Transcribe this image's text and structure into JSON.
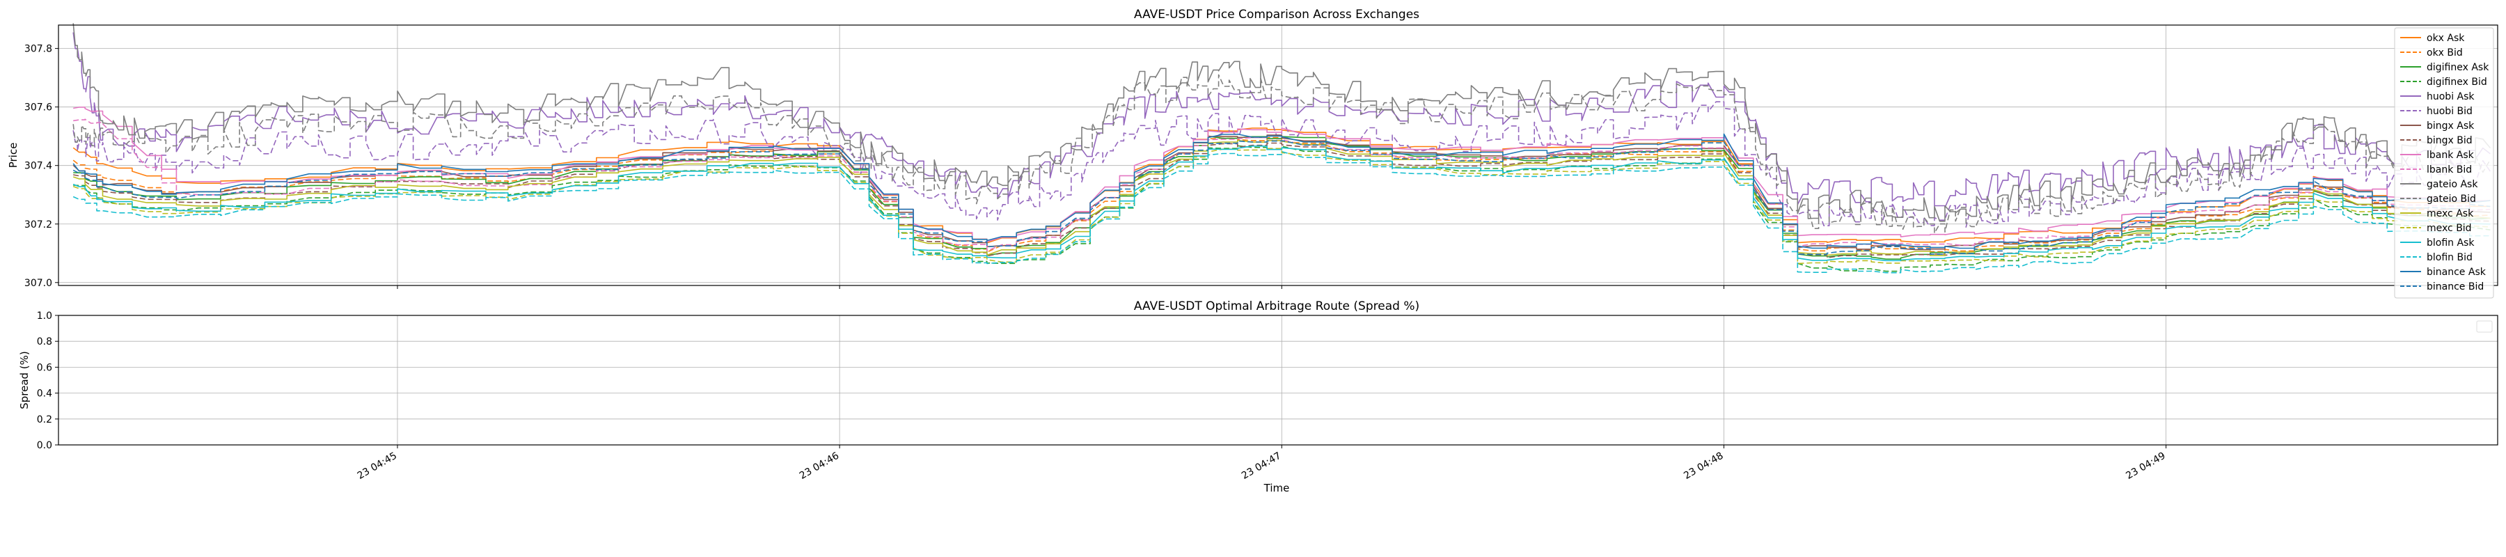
{
  "chart_data": [
    {
      "type": "line",
      "title": "AAVE-USDT Price Comparison Across Exchanges",
      "xlabel": "",
      "ylabel": "Price",
      "ylim": [
        306.99,
        307.88
      ],
      "yticks": [
        "307.0",
        "307.2",
        "307.4",
        "307.6",
        "307.8"
      ],
      "ytick_values": [
        307.0,
        307.2,
        307.4,
        307.6,
        307.8
      ],
      "xlim": [
        "04:44:14",
        "04:49:45"
      ],
      "grid": true,
      "legend_position": "upper-right",
      "x_times": [
        "04:44:16",
        "04:44:20",
        "04:44:30",
        "04:44:45",
        "04:45:00",
        "04:45:15",
        "04:45:30",
        "04:45:45",
        "04:46:00",
        "04:46:10",
        "04:46:20",
        "04:46:30",
        "04:46:40",
        "04:46:50",
        "04:47:00",
        "04:47:15",
        "04:47:30",
        "04:47:45",
        "04:48:00",
        "04:48:10",
        "04:48:20",
        "04:48:30",
        "04:48:40",
        "04:48:50",
        "04:49:00",
        "04:49:10",
        "04:49:20",
        "04:49:30",
        "04:49:44"
      ],
      "series": [
        {
          "name": "okx Ask",
          "color": "#ff7f0e",
          "dash": false,
          "values": [
            307.46,
            307.4,
            307.34,
            307.36,
            307.4,
            307.38,
            307.44,
            307.48,
            307.46,
            307.2,
            307.14,
            307.2,
            307.38,
            307.52,
            307.52,
            307.46,
            307.45,
            307.47,
            307.48,
            307.14,
            307.15,
            307.14,
            307.17,
            307.18,
            307.24,
            307.27,
            307.36,
            307.28,
            307.26
          ]
        },
        {
          "name": "okx Bid",
          "color": "#ff7f0e",
          "dash": true,
          "values": [
            307.42,
            307.36,
            307.3,
            307.33,
            307.37,
            307.35,
            307.41,
            307.45,
            307.43,
            307.17,
            307.11,
            307.17,
            307.35,
            307.49,
            307.49,
            307.43,
            307.42,
            307.44,
            307.45,
            307.11,
            307.12,
            307.11,
            307.14,
            307.15,
            307.21,
            307.24,
            307.33,
            307.25,
            307.23
          ]
        },
        {
          "name": "digifinex Ask",
          "color": "#2ca02c",
          "dash": false,
          "values": [
            307.38,
            307.32,
            307.28,
            307.32,
            307.36,
            307.34,
            307.4,
            307.44,
            307.44,
            307.16,
            307.1,
            307.14,
            307.34,
            307.5,
            307.5,
            307.44,
            307.42,
            307.44,
            307.46,
            307.1,
            307.08,
            307.1,
            307.12,
            307.14,
            307.2,
            307.22,
            307.32,
            307.24,
            307.22
          ]
        },
        {
          "name": "digifinex Bid",
          "color": "#2ca02c",
          "dash": true,
          "values": [
            307.34,
            307.28,
            307.24,
            307.28,
            307.32,
            307.3,
            307.36,
            307.4,
            307.4,
            307.12,
            307.06,
            307.1,
            307.3,
            307.46,
            307.46,
            307.4,
            307.38,
            307.4,
            307.42,
            307.06,
            307.04,
            307.06,
            307.08,
            307.1,
            307.16,
            307.18,
            307.28,
            307.2,
            307.18
          ]
        },
        {
          "name": "huobi Ask",
          "color": "#9467bd",
          "dash": false,
          "values": [
            307.82,
            307.5,
            307.48,
            307.58,
            307.54,
            307.56,
            307.6,
            307.62,
            307.52,
            307.42,
            307.3,
            307.4,
            307.6,
            307.62,
            307.62,
            307.56,
            307.58,
            307.6,
            307.68,
            307.3,
            307.32,
            307.3,
            307.34,
            307.36,
            307.42,
            307.42,
            307.5,
            307.42,
            307.44
          ]
        },
        {
          "name": "huobi Bid",
          "color": "#9467bd",
          "dash": true,
          "values": [
            307.5,
            307.44,
            307.4,
            307.48,
            307.46,
            307.48,
            307.5,
            307.52,
            307.44,
            307.34,
            307.24,
            307.32,
            307.5,
            307.54,
            307.54,
            307.48,
            307.5,
            307.52,
            307.58,
            307.22,
            307.24,
            307.22,
            307.26,
            307.28,
            307.34,
            307.36,
            307.44,
            307.36,
            307.38
          ]
        },
        {
          "name": "bingx Ask",
          "color": "#8c564b",
          "dash": false,
          "values": [
            307.4,
            307.34,
            307.3,
            307.34,
            307.38,
            307.36,
            307.42,
            307.46,
            307.45,
            307.18,
            307.12,
            307.18,
            307.36,
            307.5,
            307.5,
            307.44,
            307.43,
            307.45,
            307.47,
            307.12,
            307.12,
            307.12,
            307.14,
            307.16,
            307.22,
            307.25,
            307.34,
            307.26,
            307.24
          ]
        },
        {
          "name": "bingx Bid",
          "color": "#8c564b",
          "dash": true,
          "values": [
            307.37,
            307.31,
            307.27,
            307.31,
            307.35,
            307.33,
            307.39,
            307.43,
            307.42,
            307.15,
            307.09,
            307.15,
            307.33,
            307.47,
            307.47,
            307.41,
            307.4,
            307.42,
            307.44,
            307.09,
            307.09,
            307.09,
            307.11,
            307.13,
            307.19,
            307.22,
            307.31,
            307.23,
            307.21
          ]
        },
        {
          "name": "lbank Ask",
          "color": "#e377c2",
          "dash": false,
          "values": [
            307.6,
            307.58,
            307.34,
            307.34,
            307.38,
            307.36,
            307.42,
            307.46,
            307.46,
            307.2,
            307.14,
            307.2,
            307.4,
            307.52,
            307.52,
            307.46,
            307.46,
            307.48,
            307.5,
            307.16,
            307.16,
            307.16,
            307.18,
            307.2,
            307.26,
            307.28,
            307.36,
            307.3,
            307.28
          ]
        },
        {
          "name": "lbank Bid",
          "color": "#e377c2",
          "dash": true,
          "values": [
            307.56,
            307.54,
            307.3,
            307.31,
            307.35,
            307.33,
            307.39,
            307.43,
            307.43,
            307.17,
            307.11,
            307.17,
            307.37,
            307.49,
            307.49,
            307.43,
            307.43,
            307.45,
            307.47,
            307.13,
            307.13,
            307.13,
            307.15,
            307.17,
            307.23,
            307.25,
            307.33,
            307.27,
            307.25
          ]
        },
        {
          "name": "gateio Ask",
          "color": "#7f7f7f",
          "dash": false,
          "values": [
            307.85,
            307.55,
            307.52,
            307.6,
            307.62,
            307.58,
            307.64,
            307.7,
            307.5,
            307.4,
            307.34,
            307.44,
            307.68,
            307.72,
            307.7,
            307.62,
            307.64,
            307.66,
            307.72,
            307.26,
            307.28,
            307.24,
            307.3,
            307.32,
            307.38,
            307.4,
            307.56,
            307.44,
            307.46
          ]
        },
        {
          "name": "gateio Bid",
          "color": "#7f7f7f",
          "dash": true,
          "values": [
            307.52,
            307.48,
            307.46,
            307.54,
            307.56,
            307.52,
            307.58,
            307.64,
            307.46,
            307.36,
            307.3,
            307.4,
            307.64,
            307.68,
            307.66,
            307.58,
            307.6,
            307.62,
            307.66,
            307.22,
            307.24,
            307.2,
            307.26,
            307.28,
            307.34,
            307.36,
            307.52,
            307.4,
            307.42
          ]
        },
        {
          "name": "mexc Ask",
          "color": "#bcbd22",
          "dash": false,
          "values": [
            307.36,
            307.3,
            307.26,
            307.3,
            307.34,
            307.32,
            307.38,
            307.42,
            307.42,
            307.14,
            307.1,
            307.14,
            307.34,
            307.48,
            307.48,
            307.42,
            307.4,
            307.42,
            307.44,
            307.1,
            307.1,
            307.1,
            307.12,
            307.14,
            307.2,
            307.22,
            307.32,
            307.24,
            307.22
          ]
        },
        {
          "name": "mexc Bid",
          "color": "#bcbd22",
          "dash": true,
          "values": [
            307.33,
            307.27,
            307.23,
            307.27,
            307.31,
            307.29,
            307.35,
            307.39,
            307.39,
            307.11,
            307.07,
            307.11,
            307.31,
            307.45,
            307.45,
            307.39,
            307.37,
            307.39,
            307.41,
            307.07,
            307.07,
            307.07,
            307.09,
            307.11,
            307.17,
            307.19,
            307.29,
            307.21,
            307.19
          ]
        },
        {
          "name": "blofin Ask",
          "color": "#17becf",
          "dash": false,
          "values": [
            307.34,
            307.28,
            307.24,
            307.28,
            307.32,
            307.3,
            307.36,
            307.4,
            307.4,
            307.12,
            307.08,
            307.12,
            307.32,
            307.46,
            307.46,
            307.4,
            307.38,
            307.4,
            307.42,
            307.08,
            307.08,
            307.08,
            307.1,
            307.12,
            307.18,
            307.2,
            307.3,
            307.22,
            307.2
          ]
        },
        {
          "name": "blofin Bid",
          "color": "#17becf",
          "dash": true,
          "values": [
            307.3,
            307.24,
            307.22,
            307.26,
            307.3,
            307.28,
            307.34,
            307.38,
            307.38,
            307.1,
            307.06,
            307.1,
            307.3,
            307.44,
            307.44,
            307.38,
            307.36,
            307.38,
            307.4,
            307.04,
            307.04,
            307.04,
            307.06,
            307.08,
            307.14,
            307.16,
            307.26,
            307.18,
            307.16
          ]
        },
        {
          "name": "binance Ask",
          "color": "#1f77b4",
          "dash": false,
          "values": [
            307.4,
            307.34,
            307.3,
            307.36,
            307.4,
            307.38,
            307.42,
            307.46,
            307.46,
            307.2,
            307.14,
            307.2,
            307.38,
            307.5,
            307.5,
            307.44,
            307.44,
            307.46,
            307.5,
            307.12,
            307.14,
            307.12,
            307.14,
            307.16,
            307.26,
            307.3,
            307.36,
            307.28,
            307.28
          ]
        },
        {
          "name": "binance Bid",
          "color": "#1f77b4",
          "dash": true,
          "values": [
            307.38,
            307.32,
            307.28,
            307.34,
            307.38,
            307.36,
            307.4,
            307.44,
            307.44,
            307.18,
            307.12,
            307.18,
            307.36,
            307.48,
            307.48,
            307.42,
            307.42,
            307.44,
            307.48,
            307.1,
            307.12,
            307.1,
            307.12,
            307.14,
            307.24,
            307.28,
            307.34,
            307.26,
            307.26
          ]
        }
      ]
    },
    {
      "type": "line",
      "title": "AAVE-USDT Optimal Arbitrage Route (Spread %)",
      "xlabel": "Time",
      "ylabel": "Spread (%)",
      "ylim": [
        0.0,
        1.0
      ],
      "yticks": [
        "0.0",
        "0.2",
        "0.4",
        "0.6",
        "0.8",
        "1.0"
      ],
      "ytick_values": [
        0.0,
        0.2,
        0.4,
        0.6,
        0.8,
        1.0
      ],
      "xticks": [
        "23 04:45",
        "23 04:46",
        "23 04:47",
        "23 04:48",
        "23 04:49"
      ],
      "xtick_times": [
        "04:45:00",
        "04:46:00",
        "04:47:00",
        "04:48:00",
        "04:49:00"
      ],
      "grid": true,
      "series": []
    }
  ]
}
